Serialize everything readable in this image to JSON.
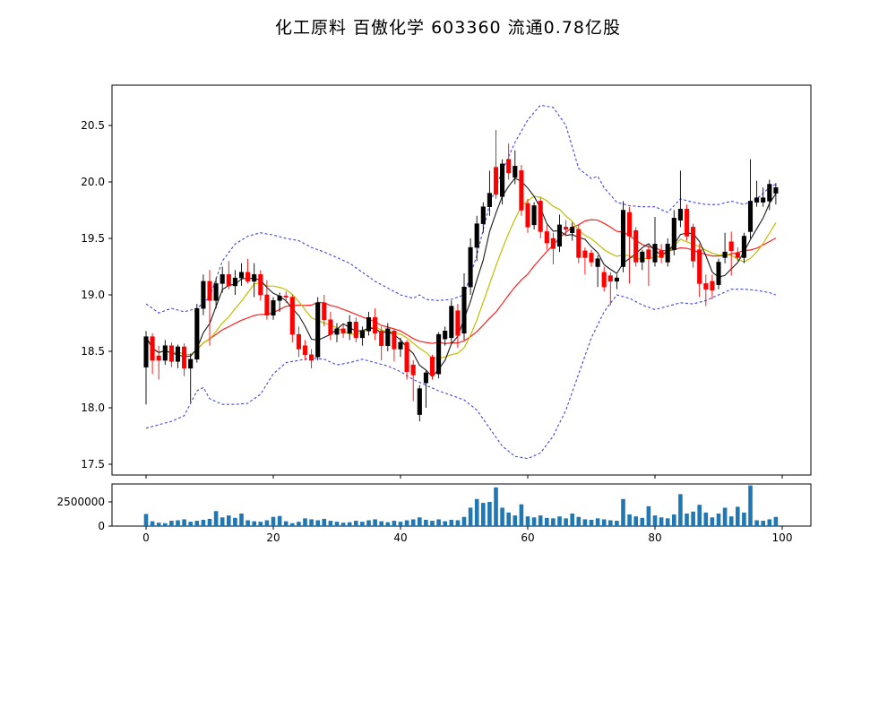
{
  "title": "化工原料 百傲化学 603360 流通0.78亿股",
  "chart_data": [
    {
      "type": "candlestick",
      "title": "化工原料 百傲化学 603360 流通0.78亿股",
      "xlabel": "",
      "ylabel": "",
      "x_tick_labels": [
        "0",
        "20",
        "40",
        "60",
        "80",
        "100"
      ],
      "x_tick_values": [
        0,
        20,
        40,
        60,
        80,
        100
      ],
      "y_tick_labels": [
        "17.5",
        "18.0",
        "18.5",
        "19.0",
        "19.5",
        "20.0",
        "20.5"
      ],
      "y_tick_values": [
        17.5,
        18.0,
        18.5,
        19.0,
        19.5,
        20.0,
        20.5
      ],
      "ylim": [
        17.4,
        20.86
      ],
      "xlim": [
        -5.3,
        104.5
      ],
      "grid": false,
      "legend": "none",
      "colors": {
        "up": "#000000",
        "down": "#ff0000",
        "ma_fast": "#1a1a1a",
        "ma_mid": "#bfbf00",
        "ma_slow": "#ff2020",
        "band": "#4444ee",
        "axis": "#000000"
      },
      "ma_windows": {
        "fast": 5,
        "mid": 10,
        "slow": 20
      },
      "ohlc": [
        [
          18.36,
          18.68,
          18.03,
          18.63
        ],
        [
          18.63,
          18.66,
          18.3,
          18.42
        ],
        [
          18.46,
          18.55,
          18.25,
          18.42
        ],
        [
          18.42,
          18.6,
          18.38,
          18.55
        ],
        [
          18.55,
          18.58,
          18.36,
          18.41
        ],
        [
          18.41,
          18.56,
          18.35,
          18.54
        ],
        [
          18.54,
          18.57,
          18.28,
          18.35
        ],
        [
          18.35,
          18.48,
          18.05,
          18.43
        ],
        [
          18.43,
          18.92,
          18.4,
          18.88
        ],
        [
          18.88,
          19.18,
          18.82,
          19.12
        ],
        [
          19.12,
          19.22,
          18.55,
          18.95
        ],
        [
          18.95,
          19.15,
          18.88,
          19.1
        ],
        [
          19.1,
          19.25,
          19.02,
          19.18
        ],
        [
          19.18,
          19.3,
          19.05,
          19.08
        ],
        [
          19.08,
          19.22,
          19.0,
          19.15
        ],
        [
          19.15,
          19.28,
          19.08,
          19.2
        ],
        [
          19.2,
          19.32,
          19.1,
          19.12
        ],
        [
          19.12,
          19.28,
          18.98,
          19.18
        ],
        [
          19.18,
          19.22,
          18.95,
          19.0
        ],
        [
          19.0,
          19.13,
          18.78,
          18.82
        ],
        [
          18.82,
          18.98,
          18.78,
          18.95
        ],
        [
          18.95,
          19.02,
          18.85,
          18.99
        ],
        [
          18.99,
          19.03,
          18.93,
          18.98
        ],
        [
          18.98,
          19.0,
          18.58,
          18.65
        ],
        [
          18.65,
          18.72,
          18.45,
          18.52
        ],
        [
          18.55,
          18.6,
          18.42,
          18.47
        ],
        [
          18.47,
          18.52,
          18.35,
          18.42
        ],
        [
          18.45,
          18.98,
          18.42,
          18.93
        ],
        [
          18.93,
          19.0,
          18.72,
          18.78
        ],
        [
          18.78,
          18.85,
          18.6,
          18.65
        ],
        [
          18.65,
          18.75,
          18.58,
          18.7
        ],
        [
          18.7,
          18.74,
          18.62,
          18.66
        ],
        [
          18.66,
          18.82,
          18.6,
          18.76
        ],
        [
          18.76,
          18.8,
          18.58,
          18.62
        ],
        [
          18.62,
          18.72,
          18.55,
          18.68
        ],
        [
          18.68,
          18.85,
          18.64,
          18.8
        ],
        [
          18.8,
          18.88,
          18.6,
          18.66
        ],
        [
          18.68,
          18.72,
          18.42,
          18.55
        ],
        [
          18.55,
          18.75,
          18.5,
          18.7
        ],
        [
          18.68,
          18.7,
          18.41,
          18.52
        ],
        [
          18.52,
          18.62,
          18.45,
          18.58
        ],
        [
          18.58,
          18.6,
          18.25,
          18.32
        ],
        [
          18.38,
          18.42,
          18.06,
          18.29
        ],
        [
          17.94,
          18.2,
          17.88,
          18.17
        ],
        [
          18.22,
          18.33,
          18.0,
          18.31
        ],
        [
          18.45,
          18.47,
          18.25,
          18.29
        ],
        [
          18.3,
          18.67,
          18.26,
          18.65
        ],
        [
          18.61,
          18.72,
          18.55,
          18.68
        ],
        [
          18.62,
          18.95,
          18.57,
          18.9
        ],
        [
          18.86,
          18.92,
          18.53,
          18.64
        ],
        [
          18.66,
          19.19,
          18.6,
          19.07
        ],
        [
          19.07,
          19.5,
          19.0,
          19.42
        ],
        [
          19.42,
          19.7,
          19.3,
          19.63
        ],
        [
          19.63,
          19.82,
          19.55,
          19.78
        ],
        [
          19.78,
          20.1,
          19.7,
          19.9
        ],
        [
          20.13,
          20.46,
          19.85,
          19.89
        ],
        [
          19.87,
          20.2,
          19.8,
          20.16
        ],
        [
          20.2,
          20.34,
          20.02,
          20.08
        ],
        [
          20.04,
          20.28,
          19.98,
          20.14
        ],
        [
          20.1,
          20.15,
          19.7,
          19.75
        ],
        [
          19.81,
          19.85,
          19.55,
          19.6
        ],
        [
          19.62,
          19.82,
          19.58,
          19.79
        ],
        [
          19.83,
          19.86,
          19.5,
          19.56
        ],
        [
          19.56,
          19.62,
          19.4,
          19.46
        ],
        [
          19.5,
          19.55,
          19.27,
          19.41
        ],
        [
          19.43,
          19.71,
          19.38,
          19.62
        ],
        [
          19.6,
          19.66,
          19.52,
          19.58
        ],
        [
          19.55,
          19.64,
          19.48,
          19.6
        ],
        [
          19.58,
          19.62,
          19.28,
          19.33
        ],
        [
          19.39,
          19.42,
          19.18,
          19.33
        ],
        [
          19.37,
          19.4,
          19.25,
          19.29
        ],
        [
          19.25,
          19.35,
          19.07,
          19.32
        ],
        [
          19.2,
          19.25,
          19.03,
          19.07
        ],
        [
          19.17,
          19.2,
          18.91,
          19.12
        ],
        [
          19.12,
          19.18,
          19.05,
          19.15
        ],
        [
          19.25,
          19.83,
          19.2,
          19.75
        ],
        [
          19.73,
          19.78,
          19.1,
          19.52
        ],
        [
          19.57,
          19.6,
          19.25,
          19.29
        ],
        [
          19.29,
          19.4,
          19.22,
          19.38
        ],
        [
          19.4,
          19.44,
          19.08,
          19.32
        ],
        [
          19.29,
          19.69,
          19.25,
          19.45
        ],
        [
          19.39,
          19.45,
          19.28,
          19.33
        ],
        [
          19.29,
          19.5,
          19.25,
          19.45
        ],
        [
          19.4,
          19.75,
          19.35,
          19.68
        ],
        [
          19.66,
          20.1,
          19.6,
          19.76
        ],
        [
          19.76,
          19.8,
          19.48,
          19.52
        ],
        [
          19.6,
          19.63,
          19.24,
          19.3
        ],
        [
          19.4,
          19.45,
          18.98,
          19.1
        ],
        [
          19.1,
          19.18,
          18.9,
          19.05
        ],
        [
          19.12,
          19.18,
          18.96,
          19.04
        ],
        [
          19.09,
          19.32,
          19.05,
          19.29
        ],
        [
          19.33,
          19.55,
          19.28,
          19.38
        ],
        [
          19.47,
          19.56,
          19.17,
          19.39
        ],
        [
          19.37,
          19.42,
          19.3,
          19.33
        ],
        [
          19.33,
          19.55,
          19.28,
          19.52
        ],
        [
          19.56,
          20.2,
          19.5,
          19.83
        ],
        [
          19.82,
          20.01,
          19.78,
          19.86
        ],
        [
          19.82,
          19.95,
          19.78,
          19.86
        ],
        [
          19.83,
          20.02,
          19.75,
          19.98
        ],
        [
          19.9,
          19.99,
          19.8,
          19.95
        ]
      ],
      "boll_upper": [
        [
          0,
          18.92
        ],
        [
          2,
          18.84
        ],
        [
          4,
          18.88
        ],
        [
          6,
          18.85
        ],
        [
          8,
          18.88
        ],
        [
          10,
          18.98
        ],
        [
          12,
          19.3
        ],
        [
          14,
          19.45
        ],
        [
          16,
          19.52
        ],
        [
          18,
          19.55
        ],
        [
          20,
          19.53
        ],
        [
          22,
          19.5
        ],
        [
          24,
          19.48
        ],
        [
          26,
          19.42
        ],
        [
          28,
          19.38
        ],
        [
          30,
          19.33
        ],
        [
          32,
          19.28
        ],
        [
          34,
          19.2
        ],
        [
          36,
          19.12
        ],
        [
          38,
          19.06
        ],
        [
          40,
          19.0
        ],
        [
          42,
          18.97
        ],
        [
          43,
          19.0
        ],
        [
          44,
          18.96
        ],
        [
          46,
          18.95
        ],
        [
          48,
          18.96
        ],
        [
          50,
          19.0
        ],
        [
          52,
          19.35
        ],
        [
          54,
          19.8
        ],
        [
          56,
          20.1
        ],
        [
          58,
          20.35
        ],
        [
          60,
          20.55
        ],
        [
          62,
          20.68
        ],
        [
          64,
          20.66
        ],
        [
          66,
          20.5
        ],
        [
          68,
          20.12
        ],
        [
          70,
          20.03
        ],
        [
          71,
          20.05
        ],
        [
          72,
          19.95
        ],
        [
          74,
          19.82
        ],
        [
          76,
          19.79
        ],
        [
          78,
          19.78
        ],
        [
          80,
          19.78
        ],
        [
          82,
          19.73
        ],
        [
          84,
          19.85
        ],
        [
          86,
          19.82
        ],
        [
          88,
          19.8
        ],
        [
          90,
          19.8
        ],
        [
          92,
          19.83
        ],
        [
          94,
          19.8
        ],
        [
          96,
          19.85
        ],
        [
          98,
          19.95
        ],
        [
          99,
          19.98
        ]
      ],
      "boll_lower": [
        [
          0,
          17.82
        ],
        [
          2,
          17.85
        ],
        [
          4,
          17.88
        ],
        [
          6,
          17.93
        ],
        [
          8,
          18.15
        ],
        [
          9,
          18.18
        ],
        [
          10,
          18.08
        ],
        [
          12,
          18.03
        ],
        [
          14,
          18.03
        ],
        [
          16,
          18.04
        ],
        [
          18,
          18.12
        ],
        [
          20,
          18.3
        ],
        [
          22,
          18.4
        ],
        [
          24,
          18.42
        ],
        [
          26,
          18.44
        ],
        [
          28,
          18.43
        ],
        [
          30,
          18.38
        ],
        [
          32,
          18.4
        ],
        [
          34,
          18.43
        ],
        [
          36,
          18.4
        ],
        [
          38,
          18.37
        ],
        [
          40,
          18.32
        ],
        [
          42,
          18.25
        ],
        [
          44,
          18.2
        ],
        [
          46,
          18.15
        ],
        [
          48,
          18.11
        ],
        [
          50,
          18.07
        ],
        [
          52,
          17.98
        ],
        [
          54,
          17.82
        ],
        [
          56,
          17.66
        ],
        [
          58,
          17.57
        ],
        [
          60,
          17.55
        ],
        [
          62,
          17.6
        ],
        [
          64,
          17.75
        ],
        [
          66,
          17.98
        ],
        [
          68,
          18.3
        ],
        [
          70,
          18.62
        ],
        [
          72,
          18.85
        ],
        [
          74,
          19.0
        ],
        [
          76,
          18.97
        ],
        [
          78,
          18.91
        ],
        [
          80,
          18.87
        ],
        [
          82,
          18.9
        ],
        [
          84,
          18.93
        ],
        [
          86,
          18.92
        ],
        [
          88,
          18.95
        ],
        [
          90,
          19.0
        ],
        [
          92,
          19.05
        ],
        [
          94,
          19.05
        ],
        [
          96,
          19.04
        ],
        [
          98,
          19.02
        ],
        [
          99,
          19.0
        ]
      ]
    },
    {
      "type": "bar",
      "title": "",
      "xlabel": "",
      "ylabel": "",
      "x_tick_labels": [
        "0",
        "20",
        "40",
        "60",
        "80",
        "100"
      ],
      "x_tick_values": [
        0,
        20,
        40,
        60,
        80,
        100
      ],
      "y_tick_labels": [
        "2500000",
        "0"
      ],
      "y_tick_values": [
        2500000,
        0
      ],
      "ylim": [
        0,
        4350000
      ],
      "bar_color": "#1f77b4",
      "values": [
        1250000,
        500000,
        350000,
        300000,
        550000,
        600000,
        700000,
        450000,
        550000,
        650000,
        750000,
        1550000,
        900000,
        1100000,
        850000,
        1300000,
        600000,
        500000,
        450000,
        600000,
        950000,
        1050000,
        500000,
        300000,
        450000,
        800000,
        700000,
        600000,
        750000,
        550000,
        450000,
        350000,
        400000,
        550000,
        450000,
        600000,
        700000,
        500000,
        400000,
        550000,
        450000,
        600000,
        700000,
        900000,
        650000,
        550000,
        700000,
        500000,
        650000,
        600000,
        950000,
        1900000,
        2800000,
        2400000,
        2500000,
        4000000,
        1900000,
        1400000,
        1100000,
        2250000,
        1000000,
        900000,
        1100000,
        850000,
        800000,
        1000000,
        800000,
        1300000,
        950000,
        700000,
        650000,
        800000,
        700000,
        600000,
        550000,
        2800000,
        1200000,
        1000000,
        850000,
        2050000,
        1100000,
        900000,
        800000,
        1200000,
        3300000,
        1300000,
        1500000,
        2200000,
        1400000,
        900000,
        1300000,
        1900000,
        1000000,
        2000000,
        1400000,
        4200000,
        600000,
        550000,
        700000,
        950000
      ]
    }
  ]
}
